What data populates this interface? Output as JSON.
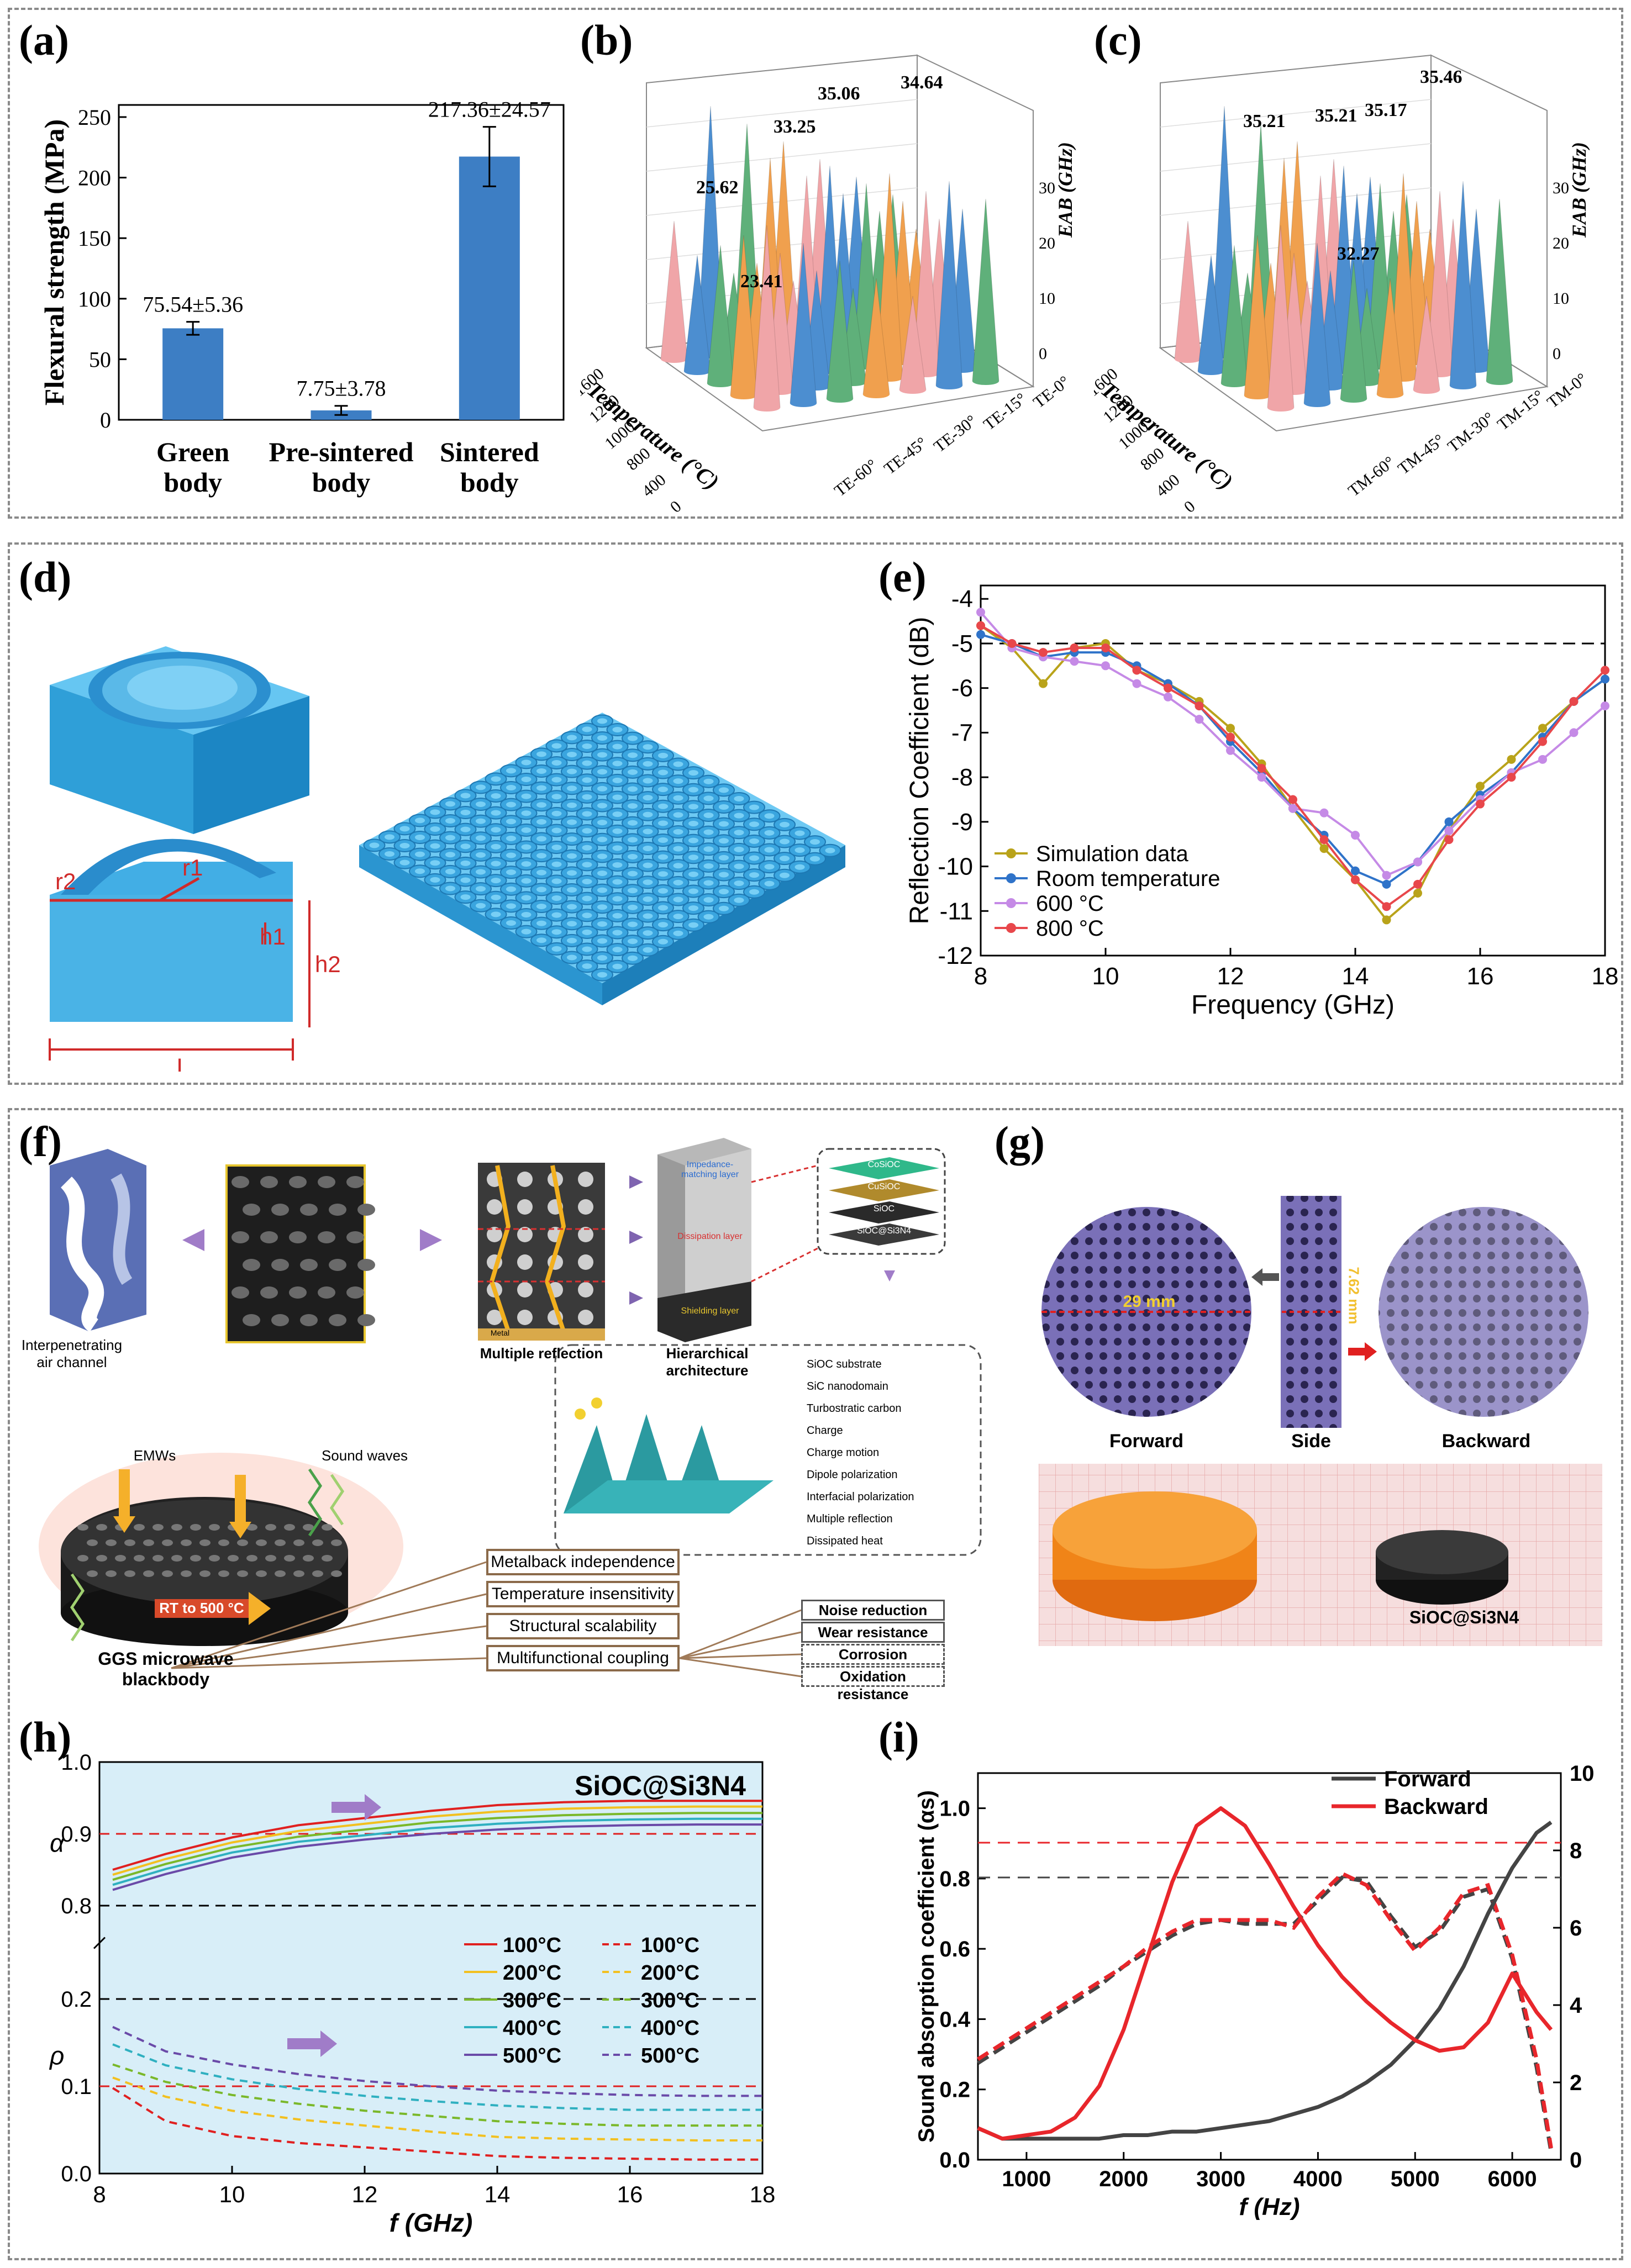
{
  "colors": {
    "bar": "#3d7ec4",
    "cone_pink": "#f0a5a8",
    "cone_blue": "#4c8ed0",
    "cone_green": "#5fb07a",
    "cone_orange": "#f0a04e",
    "sim": "#b9a31a",
    "room": "#2f73c9",
    "c600": "#c58ae6",
    "c800": "#e8474b",
    "structure_blue": "#4ab3e6",
    "forward_line": "#444444",
    "backward_line": "#e8262b",
    "h_bg": "#d8eef8"
  },
  "panels": {
    "a": "(a)",
    "b": "(b)",
    "c": "(c)",
    "d": "(d)",
    "e": "(e)",
    "f": "(f)",
    "g": "(g)",
    "h": "(h)",
    "i": "(i)"
  },
  "chart_data": [
    {
      "id": "a",
      "type": "bar",
      "ylabel": "Flexural strength (MPa)",
      "categories": [
        "Green body",
        "Pre-sintered body",
        "Sintered body"
      ],
      "category_lines": [
        [
          "Green",
          "body"
        ],
        [
          "Pre-sintered",
          "body"
        ],
        [
          "Sintered",
          "body"
        ]
      ],
      "values": [
        75.54,
        7.75,
        217.36
      ],
      "errors": [
        5.36,
        3.78,
        24.57
      ],
      "value_labels": [
        "75.54±5.36",
        "7.75±3.78",
        "217.36±24.57"
      ],
      "yticks": [
        "0",
        "50",
        "100",
        "150",
        "200",
        "250"
      ],
      "ylim": [
        0,
        260
      ]
    },
    {
      "id": "b",
      "type": "bar3d",
      "zlabel": "EAB (GHz)",
      "xlabel": "Temperature (°C)",
      "temp_ticks": [
        "0",
        "400",
        "800",
        "1000",
        "1200",
        "1600"
      ],
      "angle_ticks": [
        "TE-0°",
        "TE-15°",
        "TE-30°",
        "TE-45°",
        "TE-60°"
      ],
      "zticks": [
        "0",
        "10",
        "20",
        "30"
      ],
      "annotations": [
        "35.06",
        "34.64",
        "33.25",
        "25.62",
        "23.41"
      ]
    },
    {
      "id": "c",
      "type": "bar3d",
      "zlabel": "EAB (GHz)",
      "xlabel": "Temperature (°C)",
      "temp_ticks": [
        "0",
        "400",
        "800",
        "1000",
        "1200",
        "1600"
      ],
      "angle_ticks": [
        "TM-0°",
        "TM-15°",
        "TM-30°",
        "TM-45°",
        "TM-60°"
      ],
      "zticks": [
        "0",
        "10",
        "20",
        "30"
      ],
      "annotations": [
        "35.46",
        "35.21",
        "35.17",
        "35.21",
        "32.27"
      ]
    },
    {
      "id": "e",
      "type": "line",
      "xlabel": "Frequency (GHz)",
      "ylabel": "Reflection Coefficient (dB)",
      "xlim": [
        8,
        18
      ],
      "ylim": [
        -12,
        -3.7
      ],
      "xticks": [
        "8",
        "10",
        "12",
        "14",
        "16",
        "18"
      ],
      "yticks": [
        "-12",
        "-11",
        "-10",
        "-9",
        "-8",
        "-7",
        "-6",
        "-5",
        "-4"
      ],
      "threshold": -5,
      "x": [
        8,
        8.5,
        9,
        9.5,
        10,
        10.5,
        11,
        11.5,
        12,
        12.5,
        13,
        13.5,
        14,
        14.5,
        15,
        15.5,
        16,
        16.5,
        17,
        17.5,
        18
      ],
      "series": [
        {
          "name": "Simulation data",
          "values": [
            -4.6,
            -5.1,
            -5.9,
            -5.1,
            -5.0,
            -5.6,
            -5.9,
            -6.3,
            -6.9,
            -7.7,
            -8.7,
            -9.6,
            -10.3,
            -11.2,
            -10.6,
            -9.2,
            -8.2,
            -7.6,
            -6.9,
            -6.3,
            -5.8
          ]
        },
        {
          "name": "Room temperature",
          "values": [
            -4.8,
            -5.0,
            -5.3,
            -5.2,
            -5.2,
            -5.5,
            -5.9,
            -6.4,
            -7.2,
            -7.9,
            -8.7,
            -9.3,
            -10.1,
            -10.4,
            -9.9,
            -9.0,
            -8.4,
            -7.9,
            -7.1,
            -6.3,
            -5.8
          ]
        },
        {
          "name": "600 °C",
          "values": [
            -4.3,
            -5.1,
            -5.3,
            -5.4,
            -5.5,
            -5.9,
            -6.2,
            -6.7,
            -7.4,
            -8.0,
            -8.7,
            -8.8,
            -9.3,
            -10.2,
            -9.9,
            -9.2,
            -8.5,
            -7.9,
            -7.6,
            -7.0,
            -6.4
          ]
        },
        {
          "name": "800 °C",
          "values": [
            -4.6,
            -5.0,
            -5.2,
            -5.1,
            -5.1,
            -5.6,
            -6.0,
            -6.4,
            -7.1,
            -7.8,
            -8.5,
            -9.4,
            -10.3,
            -10.9,
            -10.4,
            -9.4,
            -8.6,
            -8.0,
            -7.2,
            -6.3,
            -5.6
          ]
        }
      ]
    },
    {
      "id": "h",
      "type": "line",
      "xlabel": "f (GHz)",
      "title": "SiOC@Si3N4",
      "xlim": [
        8,
        18
      ],
      "xticks": [
        "8",
        "10",
        "12",
        "14",
        "16",
        "18"
      ],
      "upper_ylabel": "α",
      "lower_ylabel": "ρ",
      "upper_yticks": [
        "0.8",
        "0.9",
        "1.0"
      ],
      "lower_yticks": [
        "0.0",
        "0.1",
        "0.2"
      ],
      "x": [
        8.2,
        9,
        10,
        11,
        12,
        13,
        14,
        15,
        16,
        17,
        18
      ],
      "alpha_series": [
        {
          "name": "100°C",
          "values": [
            0.85,
            0.872,
            0.895,
            0.912,
            0.922,
            0.932,
            0.94,
            0.944,
            0.946,
            0.946,
            0.946
          ]
        },
        {
          "name": "200°C",
          "values": [
            0.843,
            0.865,
            0.888,
            0.904,
            0.914,
            0.924,
            0.931,
            0.935,
            0.937,
            0.938,
            0.938
          ]
        },
        {
          "name": "300°C",
          "values": [
            0.836,
            0.858,
            0.881,
            0.896,
            0.906,
            0.916,
            0.922,
            0.926,
            0.928,
            0.929,
            0.929
          ]
        },
        {
          "name": "400°C",
          "values": [
            0.829,
            0.851,
            0.874,
            0.889,
            0.898,
            0.908,
            0.914,
            0.918,
            0.92,
            0.921,
            0.921
          ]
        },
        {
          "name": "500°C",
          "values": [
            0.822,
            0.844,
            0.867,
            0.882,
            0.892,
            0.9,
            0.906,
            0.91,
            0.912,
            0.913,
            0.913
          ]
        }
      ],
      "rho_series": [
        {
          "name": "100°C",
          "values": [
            0.098,
            0.06,
            0.043,
            0.035,
            0.03,
            0.025,
            0.02,
            0.018,
            0.017,
            0.016,
            0.016
          ]
        },
        {
          "name": "200°C",
          "values": [
            0.11,
            0.088,
            0.072,
            0.062,
            0.055,
            0.048,
            0.042,
            0.04,
            0.039,
            0.038,
            0.038
          ]
        },
        {
          "name": "300°C",
          "values": [
            0.125,
            0.105,
            0.09,
            0.08,
            0.072,
            0.066,
            0.06,
            0.057,
            0.055,
            0.055,
            0.055
          ]
        },
        {
          "name": "400°C",
          "values": [
            0.148,
            0.124,
            0.108,
            0.097,
            0.089,
            0.083,
            0.078,
            0.075,
            0.073,
            0.073,
            0.073
          ]
        },
        {
          "name": "500°C",
          "values": [
            0.168,
            0.14,
            0.125,
            0.114,
            0.106,
            0.1,
            0.095,
            0.092,
            0.09,
            0.089,
            0.089
          ]
        }
      ],
      "upper_threshold": 0.9,
      "lower_threshold": 0.1
    },
    {
      "id": "i",
      "type": "line",
      "xlabel": "f (Hz)",
      "ylabel": "Sound absorption coefficient (αs)",
      "xlim": [
        500,
        6500
      ],
      "ylim": [
        0,
        1.1
      ],
      "xticks": [
        "1000",
        "2000",
        "3000",
        "4000",
        "5000",
        "6000"
      ],
      "yticks": [
        "0.0",
        "0.2",
        "0.4",
        "0.6",
        "0.8",
        "1.0"
      ],
      "right_yticks": [
        "0",
        "2",
        "4",
        "6",
        "8",
        "10"
      ],
      "x": [
        500,
        750,
        1000,
        1250,
        1500,
        1750,
        2000,
        2250,
        2500,
        2750,
        3000,
        3250,
        3500,
        3750,
        4000,
        4250,
        4500,
        4750,
        5000,
        5250,
        5500,
        5750,
        6000,
        6250,
        6400
      ],
      "series": [
        {
          "name": "Forward",
          "values": [
            0.09,
            0.06,
            0.06,
            0.06,
            0.06,
            0.06,
            0.07,
            0.07,
            0.08,
            0.08,
            0.09,
            0.1,
            0.11,
            0.13,
            0.15,
            0.18,
            0.22,
            0.27,
            0.34,
            0.43,
            0.55,
            0.7,
            0.83,
            0.93,
            0.96
          ]
        },
        {
          "name": "Backward",
          "values": [
            0.09,
            0.06,
            0.07,
            0.08,
            0.12,
            0.21,
            0.37,
            0.58,
            0.79,
            0.95,
            1.0,
            0.95,
            0.84,
            0.72,
            0.61,
            0.52,
            0.45,
            0.39,
            0.34,
            0.31,
            0.32,
            0.39,
            0.53,
            0.42,
            0.37
          ]
        }
      ],
      "dashed_series": [
        {
          "name": "Forward (right axis)",
          "values": [
            2.5,
            2.9,
            3.3,
            3.7,
            4.1,
            4.5,
            5.0,
            5.4,
            5.8,
            6.1,
            6.2,
            6.1,
            6.1,
            6.1,
            6.7,
            7.3,
            7.2,
            6.3,
            5.5,
            5.9,
            6.8,
            7.0,
            5.2,
            2.4,
            0.2
          ]
        },
        {
          "name": "Backward (right axis)",
          "values": [
            2.6,
            3.0,
            3.4,
            3.8,
            4.2,
            4.6,
            5.0,
            5.5,
            5.9,
            6.2,
            6.2,
            6.2,
            6.2,
            6.0,
            6.8,
            7.4,
            7.1,
            6.2,
            5.4,
            6.0,
            6.9,
            7.1,
            5.3,
            2.6,
            0.3
          ]
        }
      ],
      "hlines": [
        {
          "axis": "right",
          "value": 8.2,
          "color": "#e8262b"
        },
        {
          "axis": "right",
          "value": 7.3,
          "color": "#444444"
        }
      ]
    }
  ],
  "panel_d": {
    "labels": [
      "r1",
      "r2",
      "h1",
      "h2",
      "l"
    ]
  },
  "panel_f": {
    "captions": {
      "air": "Interpenetrating air channel",
      "multiple": "Multiple reflection",
      "hier": "Hierarchical architecture",
      "blackbody": "GGS microwave blackbody",
      "emws": "EMWs",
      "sound": "Sound waves",
      "rt": "RT to 500 °C",
      "layer1": "Impedance-matching layer",
      "layer2": "Dissipation layer",
      "layer3": "Shielding layer",
      "metal": "Metal",
      "stack1": "CoSiOC",
      "stack2": "CuSiOC",
      "stack3": "SiOC",
      "stack4": "SiOC@Si3N4"
    },
    "legend": [
      "SiOC substrate",
      "SiC nanodomain",
      "Turbostratic carbon",
      "Charge",
      "Charge motion",
      "Dipole polarization",
      "Interfacial polarization",
      "Multiple reflection",
      "Dissipated heat"
    ],
    "features": [
      "Metalback independence",
      "Temperature insensitivity",
      "Structural scalability",
      "Multifunctional coupling"
    ],
    "functions": [
      "Noise reduction",
      "Wear resistance",
      "Corrosion resistance",
      "Oxidation resistance"
    ]
  },
  "panel_g": {
    "forward": "Forward",
    "side": "Side",
    "backward": "Backward",
    "width": "29 mm",
    "height": "7.62 mm",
    "sample": "SiOC@Si3N4"
  }
}
